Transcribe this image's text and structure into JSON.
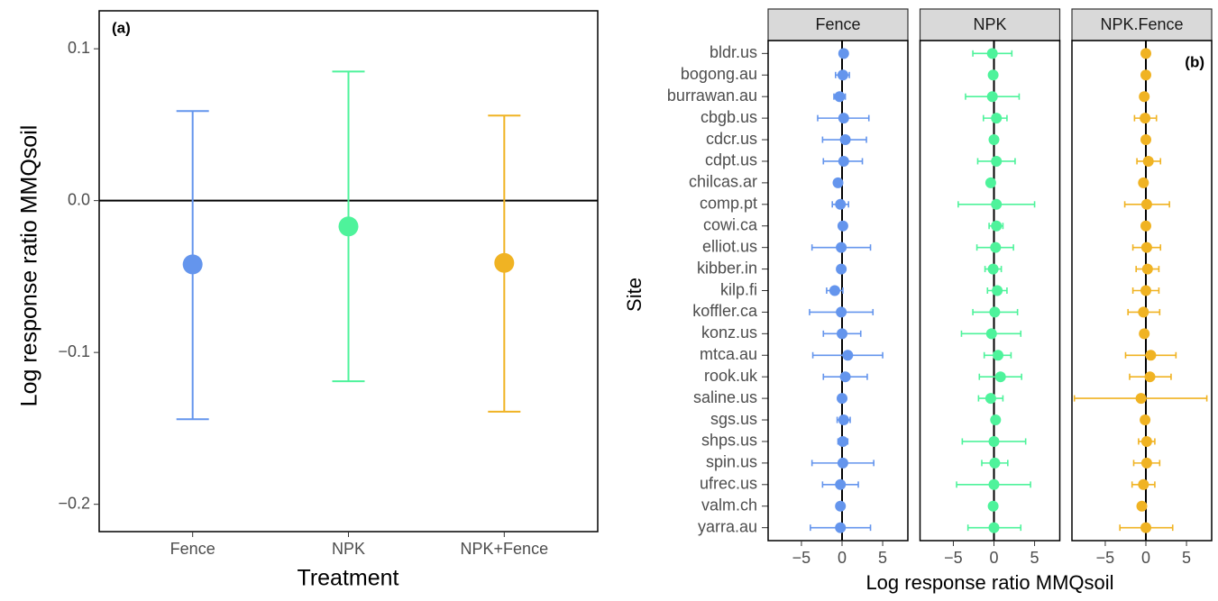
{
  "chart_data": [
    {
      "type": "errorbar",
      "annotation": "(a)",
      "xlabel": "Treatment",
      "ylabel": "Log response ratio MMQsoil",
      "categories": [
        "Fence",
        "NPK",
        "NPK+Fence"
      ],
      "values": [
        -0.042,
        -0.017,
        -0.041
      ],
      "lower": [
        -0.144,
        -0.119,
        -0.139
      ],
      "upper": [
        0.059,
        0.085,
        0.056
      ],
      "colors": [
        "#6495ED",
        "#4EF39B",
        "#F0B323"
      ],
      "ylim": [
        -0.218,
        0.125
      ],
      "yticks": [
        0.1,
        {
          "value": 0,
          "label": "0.0"
        },
        {
          "value": -0.1,
          "label": "−0.1"
        },
        {
          "value": -0.2,
          "label": "−0.2"
        }
      ],
      "hline": 0,
      "grid": false
    },
    {
      "type": "faceted-dot",
      "annotation": "(b)",
      "xlabel": "Log response ratio MMQsoil",
      "ylabel": "Site",
      "categories": [
        "bldr.us",
        "bogong.au",
        "burrawan.au",
        "cbgb.us",
        "cdcr.us",
        "cdpt.us",
        "chilcas.ar",
        "comp.pt",
        "cowi.ca",
        "elliot.us",
        "kibber.in",
        "kilp.fi",
        "koffler.ca",
        "konz.us",
        "mtca.au",
        "rook.uk",
        "saline.us",
        "sgs.us",
        "shps.us",
        "spin.us",
        "ufrec.us",
        "valm.ch",
        "yarra.au"
      ],
      "series": [
        {
          "name": "Fence",
          "color": "#6495ED",
          "values": [
            0.2,
            0.1,
            -0.3,
            0.2,
            0.4,
            0.2,
            -0.5,
            -0.2,
            0.1,
            -0.1,
            -0.1,
            -0.9,
            -0.1,
            0.0,
            0.7,
            0.4,
            0.0,
            0.2,
            0.1,
            0.1,
            -0.2,
            -0.2,
            -0.2
          ],
          "lower": [
            -0.1,
            -0.8,
            -1.0,
            -3.0,
            -2.4,
            -2.3,
            -0.9,
            -1.2,
            -0.3,
            -3.7,
            -0.5,
            -1.9,
            -4.0,
            -2.3,
            -3.6,
            -2.3,
            -0.3,
            -0.6,
            -0.5,
            -3.7,
            -2.4,
            -0.5,
            -3.9
          ],
          "upper": [
            0.5,
            0.9,
            0.4,
            3.3,
            3.0,
            2.5,
            -0.1,
            0.8,
            0.5,
            3.5,
            0.3,
            0.1,
            3.8,
            2.3,
            5.0,
            3.1,
            0.3,
            1.0,
            0.7,
            3.9,
            2.0,
            0.1,
            3.5
          ]
        },
        {
          "name": "NPK",
          "color": "#4EF39B",
          "values": [
            -0.2,
            -0.1,
            -0.2,
            0.3,
            0.0,
            0.3,
            -0.4,
            0.3,
            0.3,
            0.2,
            -0.1,
            0.4,
            0.1,
            -0.3,
            0.5,
            0.8,
            -0.4,
            0.2,
            0.0,
            0.1,
            0.0,
            -0.1,
            0.0
          ],
          "lower": [
            -2.6,
            -0.4,
            -3.5,
            -1.3,
            -0.4,
            -2.0,
            -0.8,
            -4.4,
            -0.6,
            -2.1,
            -1.1,
            -0.8,
            -2.6,
            -4.0,
            -1.2,
            -1.8,
            -1.9,
            -0.2,
            -3.9,
            -1.5,
            -4.6,
            -0.4,
            -3.2
          ],
          "upper": [
            2.2,
            0.2,
            3.1,
            1.6,
            0.4,
            2.6,
            0.0,
            5.0,
            1.1,
            2.4,
            0.9,
            1.6,
            2.9,
            3.3,
            2.1,
            3.4,
            1.1,
            0.6,
            3.9,
            1.7,
            4.5,
            0.2,
            3.3
          ]
        },
        {
          "name": "NPK.Fence",
          "color": "#F0B323",
          "values": [
            0.0,
            0.0,
            -0.2,
            -0.1,
            0.0,
            0.3,
            -0.3,
            0.1,
            0.0,
            0.1,
            0.2,
            0.0,
            -0.3,
            -0.2,
            0.6,
            0.5,
            -0.6,
            -0.1,
            0.1,
            0.1,
            -0.3,
            -0.5,
            0.0
          ],
          "lower": [
            -0.3,
            -0.3,
            -0.6,
            -1.4,
            -0.3,
            -1.1,
            -0.6,
            -2.6,
            -0.3,
            -1.6,
            -1.2,
            -1.6,
            -2.2,
            -0.5,
            -2.5,
            -2.0,
            -8.8,
            -0.5,
            -0.9,
            -1.5,
            -1.7,
            -0.9,
            -3.2
          ],
          "upper": [
            0.3,
            0.3,
            0.2,
            1.3,
            0.3,
            1.8,
            0.0,
            2.9,
            0.3,
            1.8,
            1.6,
            1.6,
            1.7,
            0.1,
            3.7,
            3.1,
            7.5,
            0.3,
            1.1,
            1.7,
            1.1,
            -0.1,
            3.3
          ]
        }
      ],
      "xlim": [
        -9.1,
        8.1
      ],
      "xticks": [
        {
          "value": -5,
          "label": "−5"
        },
        0,
        5
      ],
      "vline": 0,
      "grid": false
    }
  ]
}
